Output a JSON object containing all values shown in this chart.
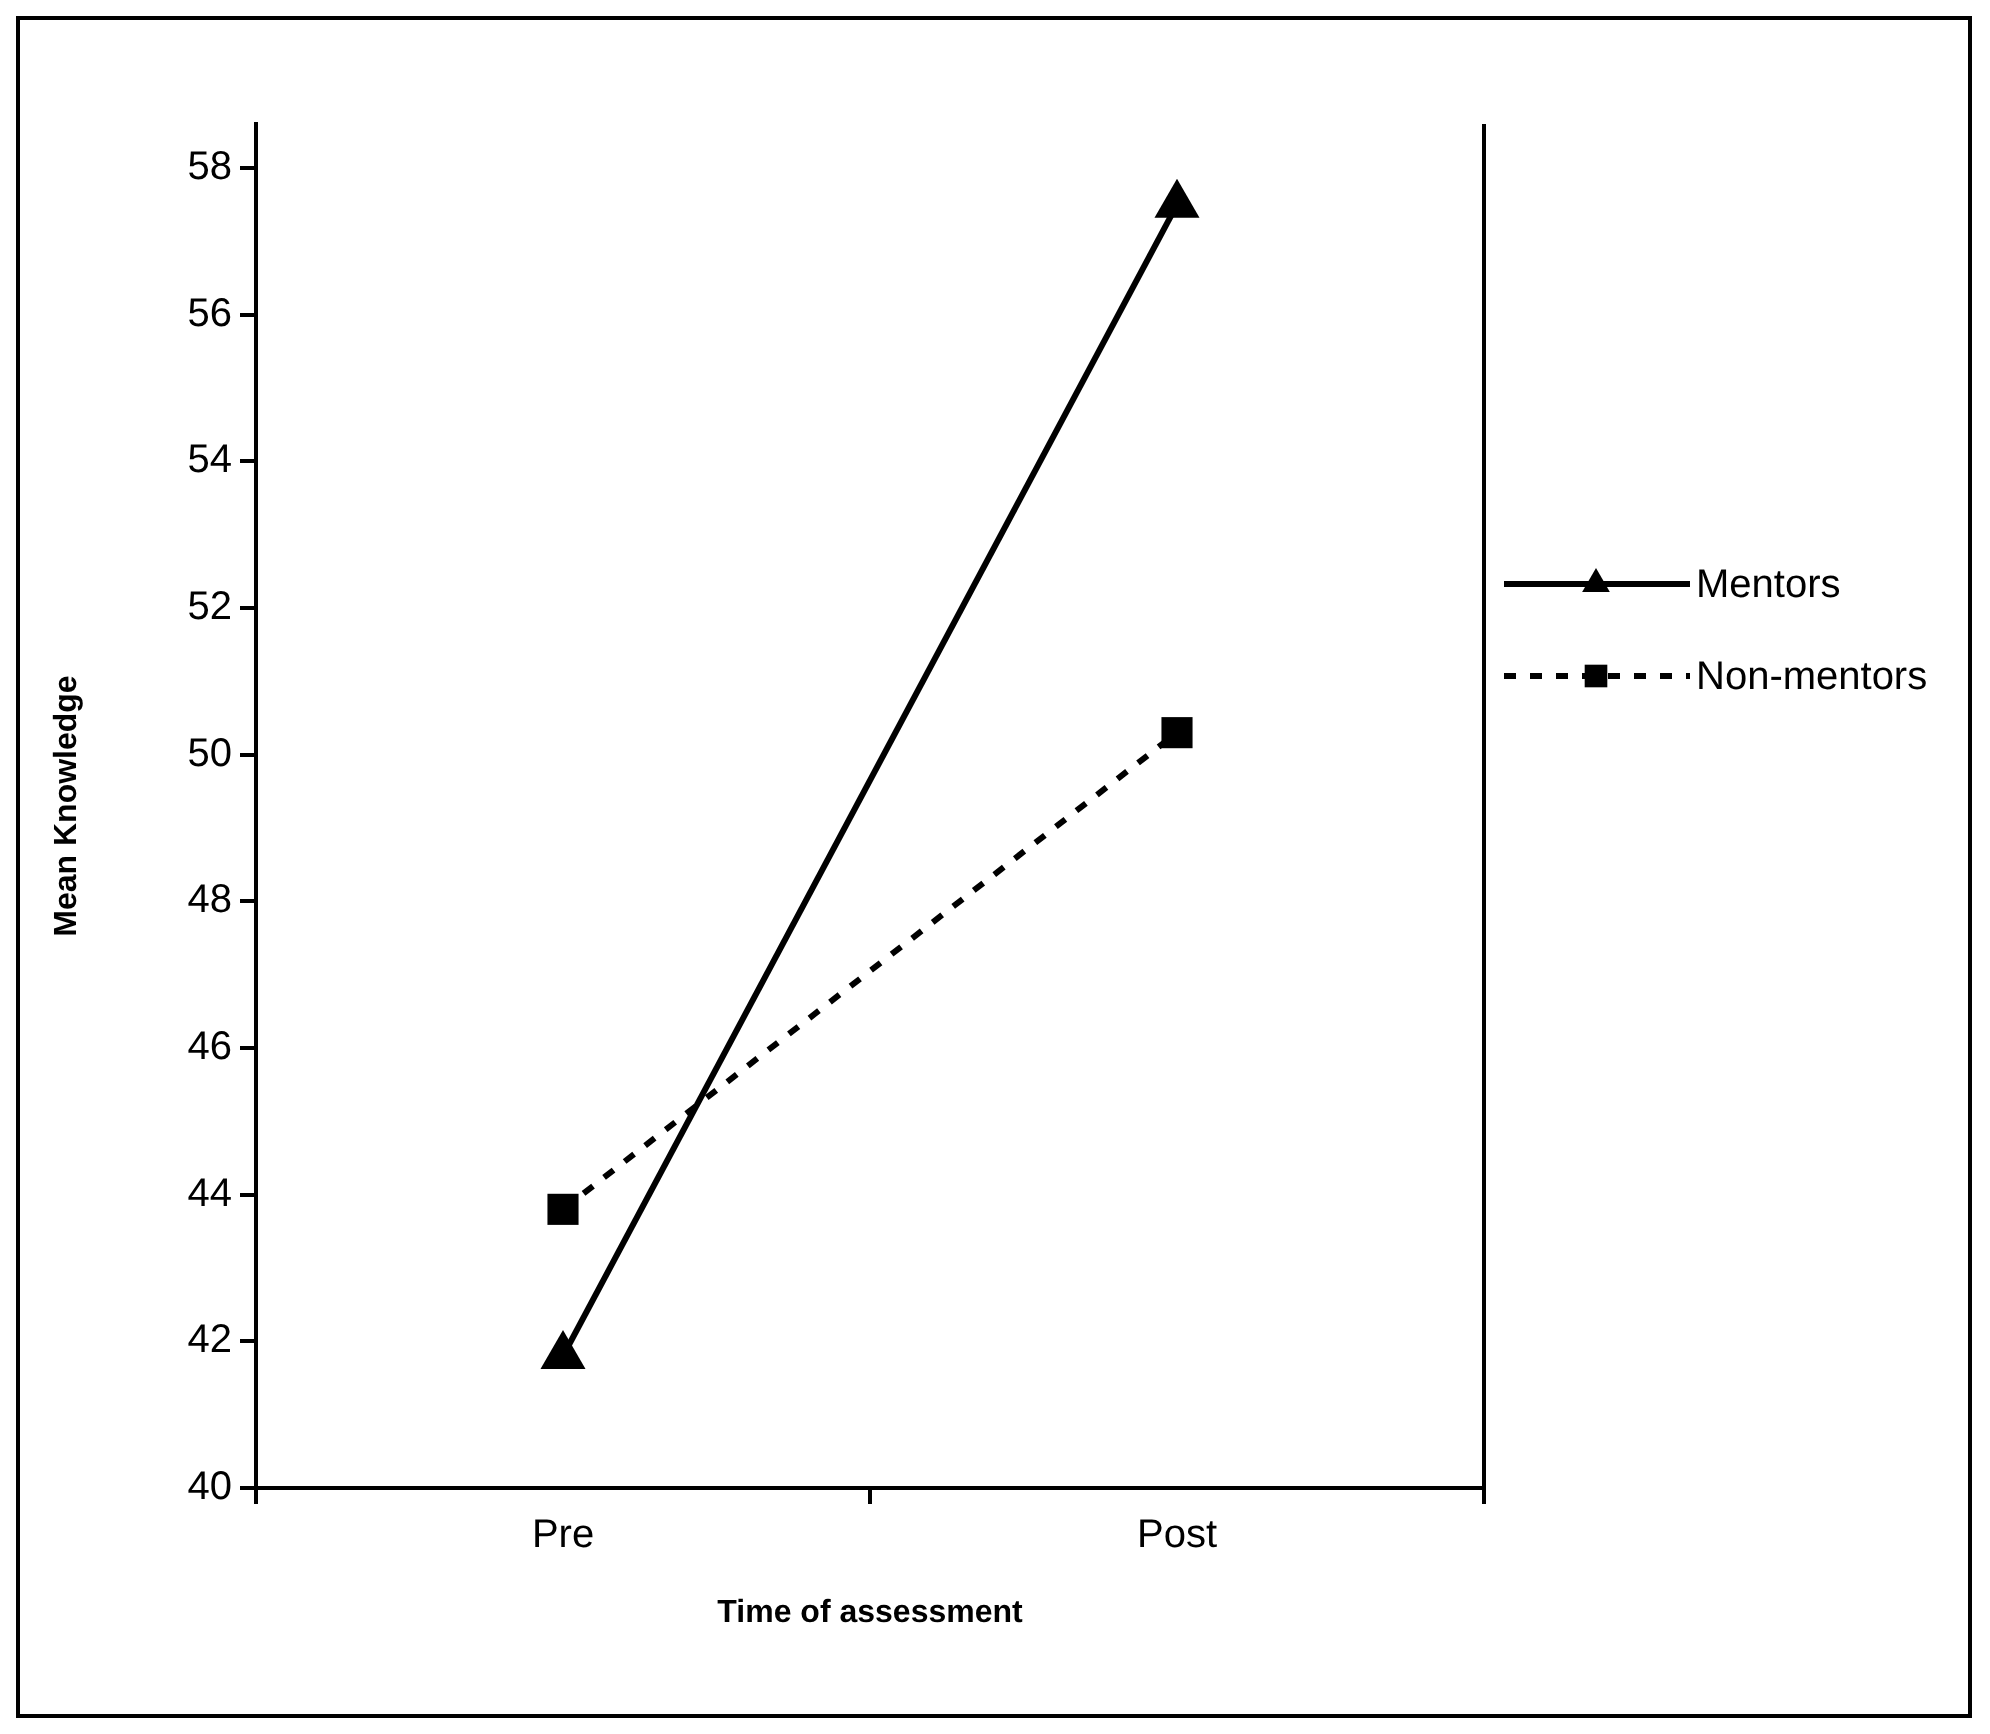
{
  "chart_data": {
    "type": "line",
    "xlabel": "Time of assessment",
    "ylabel": "Mean Knowledge",
    "categories": [
      "Pre",
      "Post"
    ],
    "series": [
      {
        "name": "Mentors",
        "color": "#000000",
        "values": [
          41.8,
          57.5
        ],
        "marker": "triangle",
        "line_style": "solid"
      },
      {
        "name": "Non-mentors",
        "color": "#000000",
        "values": [
          43.8,
          50.3
        ],
        "marker": "square",
        "line_style": "dashed"
      }
    ],
    "ylim": [
      40,
      58.6
    ],
    "yticks": [
      40,
      42,
      44,
      46,
      48,
      50,
      52,
      54,
      56,
      58
    ],
    "grid": false,
    "legend": "right"
  }
}
